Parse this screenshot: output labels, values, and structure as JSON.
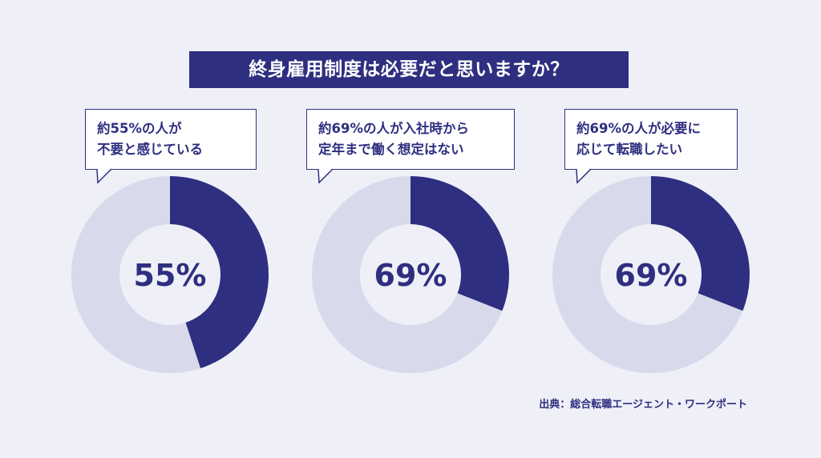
{
  "title": "終身雇用制度は必要だと思いますか？",
  "source": "出典：総合転職エージェント・ワークポート",
  "colors": {
    "accent": "#2e2f80",
    "track": "#d9d9ec",
    "background": "#efeff7"
  },
  "chart_data": [
    {
      "type": "pie",
      "center_label": "55%",
      "values": [
        45,
        55
      ],
      "callout": [
        "約55%の人が",
        "不要と感じている"
      ]
    },
    {
      "type": "pie",
      "center_label": "69%",
      "values": [
        31,
        69
      ],
      "callout": [
        "約69%の人が入社時から",
        "定年まで働く想定はない"
      ]
    },
    {
      "type": "pie",
      "center_label": "69%",
      "values": [
        31,
        69
      ],
      "callout": [
        "約69%の人が必要に",
        "応じて転職したい"
      ]
    }
  ]
}
